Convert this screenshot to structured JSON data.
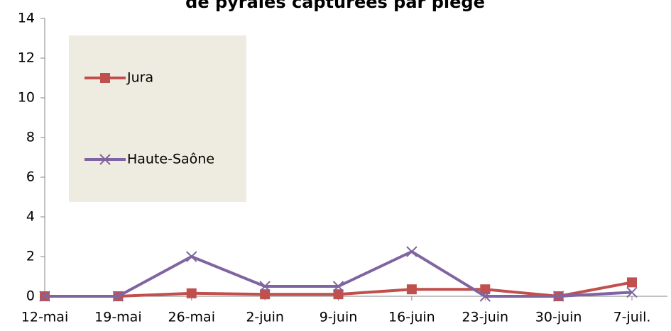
{
  "chart_data": {
    "type": "line",
    "title": "de pyrales capturées par piège",
    "categories": [
      "12-mai",
      "19-mai",
      "26-mai",
      "2-juin",
      "9-juin",
      "16-juin",
      "23-juin",
      "30-juin",
      "7-juil."
    ],
    "series": [
      {
        "name": "Jura",
        "color": "#c0504d",
        "marker": "square",
        "values": [
          0,
          0,
          0.15,
          0.1,
          0.1,
          0.35,
          0.35,
          0,
          0.7
        ]
      },
      {
        "name": "Haute-Saône",
        "color": "#8064a2",
        "marker": "x",
        "values": [
          0,
          0,
          2,
          0.5,
          0.5,
          2.25,
          0,
          0,
          0.2
        ]
      }
    ],
    "ylim": [
      0,
      14
    ],
    "yticks": [
      0,
      2,
      4,
      6,
      8,
      10,
      12,
      14
    ],
    "grid": false,
    "legend": "upper left"
  }
}
